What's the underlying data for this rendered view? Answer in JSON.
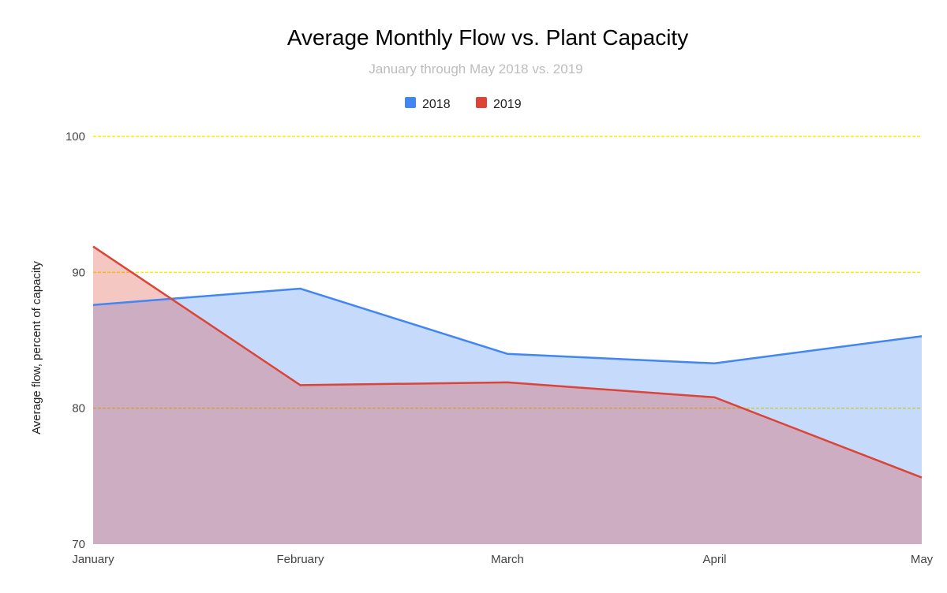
{
  "chart_data": {
    "type": "area",
    "title": "Average Monthly Flow vs. Plant Capacity",
    "subtitle": "January through May 2018 vs. 2019",
    "xlabel": "",
    "ylabel": "Average flow, percent of capacity",
    "categories": [
      "January",
      "February",
      "March",
      "April",
      "May"
    ],
    "ylim": [
      70,
      100
    ],
    "yticks": [
      "70",
      "80",
      "90",
      "100"
    ],
    "grid": true,
    "gridline_color": "#ffeb00",
    "legend_position": "top",
    "series": [
      {
        "name": "2018",
        "color": "#4285f4",
        "values": [
          87.6,
          88.8,
          84.0,
          83.3,
          85.3
        ]
      },
      {
        "name": "2019",
        "color": "#db4437",
        "values": [
          91.9,
          81.7,
          81.9,
          80.8,
          74.9
        ]
      }
    ]
  }
}
